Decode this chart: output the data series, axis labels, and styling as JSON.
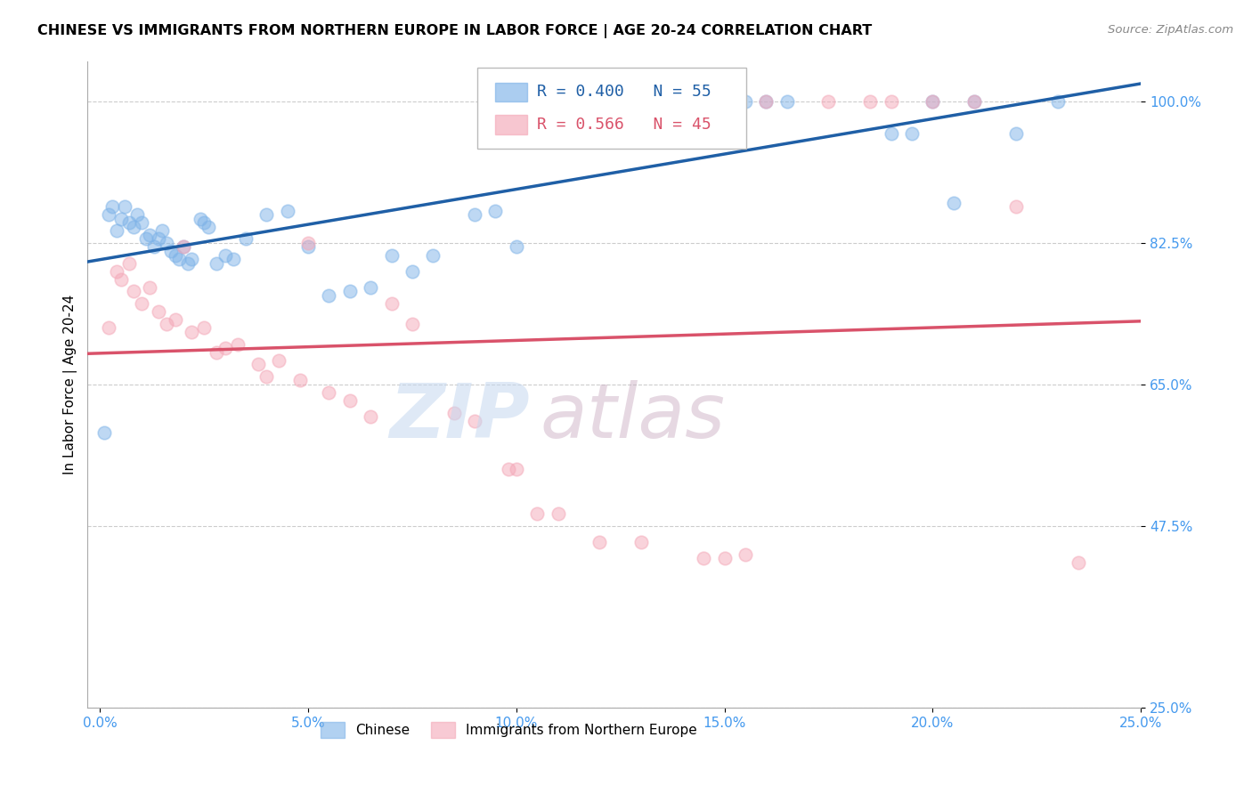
{
  "title": "CHINESE VS IMMIGRANTS FROM NORTHERN EUROPE IN LABOR FORCE | AGE 20-24 CORRELATION CHART",
  "source": "Source: ZipAtlas.com",
  "ylabel": "In Labor Force | Age 20-24",
  "x_ticks_labels": [
    "0.0%",
    "5.0%",
    "10.0%",
    "15.0%",
    "20.0%",
    "25.0%"
  ],
  "x_ticks_vals": [
    0.0,
    5.0,
    10.0,
    15.0,
    20.0,
    25.0
  ],
  "y_ticks_labels": [
    "100.0%",
    "82.5%",
    "65.0%",
    "47.5%",
    "25.0%"
  ],
  "y_ticks_vals": [
    100.0,
    82.5,
    65.0,
    47.5,
    25.0
  ],
  "xlim": [
    -0.3,
    25.0
  ],
  "ylim": [
    25.0,
    105.0
  ],
  "legend_R_blue": "R = 0.400",
  "legend_N_blue": "N = 55",
  "legend_R_pink": "R = 0.566",
  "legend_N_pink": "N = 45",
  "blue_color": "#7EB3E8",
  "pink_color": "#F4A8B8",
  "line_blue": "#1F5FA6",
  "line_pink": "#D9526A",
  "background_color": "#FFFFFF",
  "chinese_x": [
    0.1,
    0.2,
    0.3,
    0.4,
    0.5,
    0.6,
    0.7,
    0.8,
    0.9,
    1.0,
    1.1,
    1.2,
    1.3,
    1.4,
    1.5,
    1.6,
    1.7,
    1.8,
    1.9,
    2.0,
    2.1,
    2.2,
    2.4,
    2.5,
    2.6,
    2.8,
    3.0,
    3.2,
    3.5,
    4.0,
    4.5,
    5.0,
    5.5,
    6.0,
    6.5,
    7.0,
    7.5,
    8.0,
    9.0,
    9.5,
    10.0,
    11.0,
    12.0,
    13.0,
    14.0,
    15.5,
    16.0,
    16.5,
    19.0,
    19.5,
    20.0,
    20.5,
    21.0,
    22.0,
    23.0
  ],
  "chinese_y": [
    59.0,
    86.0,
    87.0,
    84.0,
    85.5,
    87.0,
    85.0,
    84.5,
    86.0,
    85.0,
    83.0,
    83.5,
    82.0,
    83.0,
    84.0,
    82.5,
    81.5,
    81.0,
    80.5,
    82.0,
    80.0,
    80.5,
    85.5,
    85.0,
    84.5,
    80.0,
    81.0,
    80.5,
    83.0,
    86.0,
    86.5,
    82.0,
    76.0,
    76.5,
    77.0,
    81.0,
    79.0,
    81.0,
    86.0,
    86.5,
    82.0,
    100.0,
    100.0,
    100.0,
    100.0,
    100.0,
    100.0,
    100.0,
    96.0,
    96.0,
    100.0,
    87.5,
    100.0,
    96.0,
    100.0
  ],
  "northern_europe_x": [
    0.2,
    0.4,
    0.5,
    0.7,
    0.8,
    1.0,
    1.2,
    1.4,
    1.6,
    1.8,
    2.0,
    2.2,
    2.5,
    2.8,
    3.0,
    3.3,
    3.8,
    4.0,
    4.3,
    4.8,
    5.0,
    5.5,
    6.0,
    6.5,
    7.0,
    7.5,
    8.5,
    9.0,
    9.8,
    10.0,
    10.5,
    11.0,
    12.0,
    13.0,
    14.5,
    15.0,
    15.5,
    16.0,
    17.5,
    18.5,
    19.0,
    20.0,
    21.0,
    22.0,
    23.5
  ],
  "northern_europe_y": [
    72.0,
    79.0,
    78.0,
    80.0,
    76.5,
    75.0,
    77.0,
    74.0,
    72.5,
    73.0,
    82.0,
    71.5,
    72.0,
    69.0,
    69.5,
    70.0,
    67.5,
    66.0,
    68.0,
    65.5,
    82.5,
    64.0,
    63.0,
    61.0,
    75.0,
    72.5,
    61.5,
    60.5,
    54.5,
    54.5,
    49.0,
    49.0,
    45.5,
    45.5,
    43.5,
    43.5,
    44.0,
    100.0,
    100.0,
    100.0,
    100.0,
    100.0,
    100.0,
    87.0,
    43.0
  ]
}
